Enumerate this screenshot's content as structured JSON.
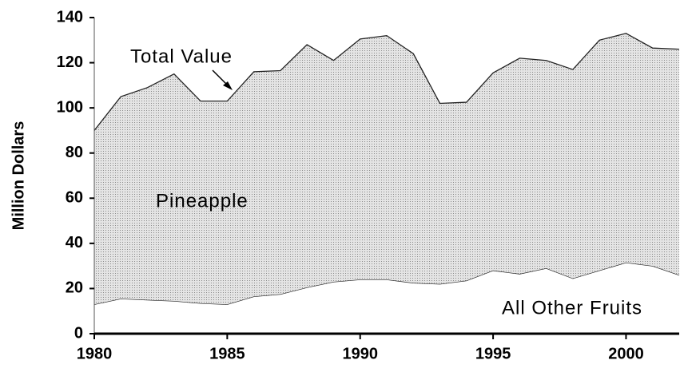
{
  "chart_data": {
    "type": "area",
    "stacked": true,
    "y_label": "Million Dollars",
    "annotation": "Total Value",
    "x": [
      1980,
      1981,
      1982,
      1983,
      1984,
      1985,
      1986,
      1987,
      1988,
      1989,
      1990,
      1991,
      1992,
      1993,
      1994,
      1995,
      1996,
      1997,
      1998,
      1999,
      2000,
      2001,
      2002
    ],
    "series": [
      {
        "name": "All Other Fruits",
        "color": "#ffffff",
        "values": [
          13,
          15.5,
          15,
          14.5,
          13.5,
          13,
          16.5,
          17.5,
          20.5,
          23,
          24,
          24,
          22.5,
          22,
          23.5,
          28,
          26.5,
          29,
          24.5,
          28,
          31.5,
          30,
          26
        ]
      },
      {
        "name": "Pineapple",
        "color": "#d4d4d4",
        "values": [
          77,
          89.5,
          94,
          100.5,
          89.5,
          90,
          99.5,
          99,
          107.5,
          98,
          106.5,
          108,
          101.5,
          80,
          79,
          87.5,
          95.5,
          92,
          92.5,
          102,
          101.5,
          96.5,
          100
        ]
      }
    ],
    "xlim": [
      1980,
      2002
    ],
    "xticks": [
      1980,
      1985,
      1990,
      1995,
      2000
    ],
    "ylim": [
      0,
      140
    ],
    "yticks": [
      0,
      20,
      40,
      60,
      80,
      100,
      120,
      140
    ]
  }
}
